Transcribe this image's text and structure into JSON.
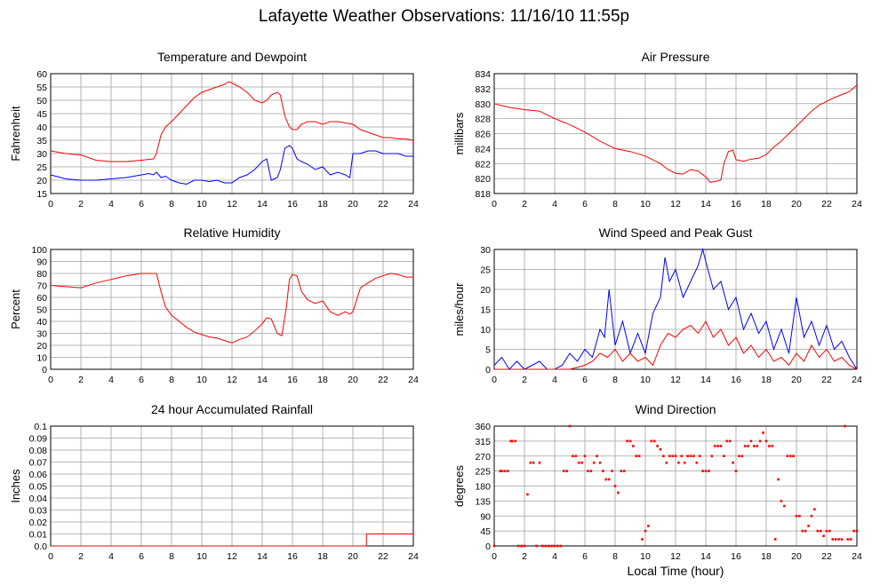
{
  "page": {
    "title": "Lafayette Weather Observations: 11/16/10 11:55p",
    "xlabel_shared": "Local Time (hour)"
  },
  "colors": {
    "red": "#ff0000",
    "blue": "#0000ff",
    "grid": "#a0a0a0"
  },
  "chart_data": [
    {
      "type": "line",
      "title": "Temperature and Dewpoint",
      "xlabel": "",
      "ylabel": "Fahrenheit",
      "xlim": [
        0,
        24
      ],
      "ylim": [
        15,
        60
      ],
      "xticks": [
        0,
        2,
        4,
        6,
        8,
        10,
        12,
        14,
        16,
        18,
        20,
        22,
        24
      ],
      "yticks": [
        15,
        20,
        25,
        30,
        35,
        40,
        45,
        50,
        55,
        60
      ],
      "grid": true,
      "series": [
        {
          "color": "red",
          "x": [
            0,
            1,
            2,
            3,
            4,
            5,
            6,
            6.8,
            7,
            7.3,
            7.6,
            8,
            8.5,
            9,
            9.5,
            10,
            10.5,
            11,
            11.5,
            11.8,
            12,
            12.5,
            13,
            13.5,
            14,
            14.3,
            14.6,
            15,
            15.2,
            15.5,
            15.8,
            16,
            16.3,
            16.6,
            17,
            17.5,
            18,
            18.5,
            19,
            19.5,
            20,
            20.5,
            21,
            21.5,
            22,
            22.5,
            23,
            23.5,
            24
          ],
          "y": [
            31,
            30,
            29.5,
            27.5,
            27,
            27,
            27.5,
            28,
            30,
            37,
            40,
            42,
            45,
            48,
            51,
            53,
            54,
            55,
            56,
            57,
            56.5,
            55,
            53,
            50,
            49,
            50,
            52,
            53,
            52,
            44,
            40,
            39,
            39,
            41,
            42,
            42,
            41,
            42,
            42,
            41.5,
            41,
            39,
            38,
            37,
            36,
            36,
            35.5,
            35.5,
            35
          ]
        },
        {
          "color": "blue",
          "x": [
            0,
            1,
            2,
            3,
            4,
            5,
            6,
            6.5,
            6.8,
            7,
            7.3,
            7.6,
            8,
            8.5,
            9,
            9.5,
            10,
            10.5,
            11,
            11.5,
            12,
            12.5,
            13,
            13.5,
            14,
            14.3,
            14.6,
            15,
            15.2,
            15.5,
            15.8,
            16,
            16.3,
            16.6,
            17,
            17.5,
            18,
            18.5,
            19,
            19.5,
            19.8,
            20,
            20.5,
            21,
            21.5,
            22,
            22.5,
            23,
            23.5,
            24
          ],
          "y": [
            22,
            20.5,
            20,
            20,
            20.5,
            21,
            22,
            22.5,
            22,
            23,
            21,
            21.5,
            20,
            19,
            18.5,
            20,
            20,
            19.5,
            20,
            19,
            19,
            21,
            22,
            24,
            27,
            28,
            20,
            21,
            24,
            32,
            33,
            32,
            28,
            27,
            26,
            24,
            25,
            22,
            23,
            22,
            21,
            30,
            30,
            31,
            31,
            30,
            30,
            30,
            29,
            29
          ]
        }
      ]
    },
    {
      "type": "line",
      "title": "Air Pressure",
      "xlabel": "",
      "ylabel": "millibars",
      "xlim": [
        0,
        24
      ],
      "ylim": [
        818,
        834
      ],
      "xticks": [
        0,
        2,
        4,
        6,
        8,
        10,
        12,
        14,
        16,
        18,
        20,
        22,
        24
      ],
      "yticks": [
        818,
        820,
        822,
        824,
        826,
        828,
        830,
        832,
        834
      ],
      "grid": true,
      "series": [
        {
          "color": "red",
          "x": [
            0,
            1,
            2,
            3,
            4,
            5,
            6,
            7,
            8,
            9,
            10,
            11,
            11.5,
            12,
            12.5,
            13,
            13.5,
            14,
            14.3,
            14.6,
            15,
            15.2,
            15.5,
            15.8,
            16,
            16.5,
            17,
            17.5,
            18,
            18.5,
            19,
            19.5,
            20,
            20.5,
            21,
            21.5,
            22,
            22.5,
            23,
            23.5,
            24
          ],
          "y": [
            830,
            829.5,
            829.2,
            829,
            828,
            827.2,
            826.2,
            825,
            824,
            823.6,
            823,
            822,
            821.2,
            820.7,
            820.6,
            821.2,
            821,
            820.2,
            819.5,
            819.6,
            819.8,
            822,
            823.6,
            823.8,
            822.5,
            822.3,
            822.6,
            822.7,
            823.2,
            824.2,
            825,
            826,
            827,
            828,
            829,
            829.8,
            830.3,
            830.8,
            831.2,
            831.6,
            832.5
          ]
        }
      ]
    },
    {
      "type": "line",
      "title": "Relative Humidity",
      "xlabel": "",
      "ylabel": "Percent",
      "xlim": [
        0,
        24
      ],
      "ylim": [
        0,
        100
      ],
      "xticks": [
        0,
        2,
        4,
        6,
        8,
        10,
        12,
        14,
        16,
        18,
        20,
        22,
        24
      ],
      "yticks": [
        0,
        10,
        20,
        30,
        40,
        50,
        60,
        70,
        80,
        90,
        100
      ],
      "grid": true,
      "series": [
        {
          "color": "red",
          "x": [
            0,
            1,
            2,
            3,
            4,
            5,
            6,
            7,
            7.3,
            7.6,
            8,
            8.5,
            9,
            9.5,
            10,
            10.5,
            11,
            11.5,
            12,
            12.5,
            13,
            13.5,
            14,
            14.3,
            14.6,
            15,
            15.3,
            15.6,
            15.8,
            16,
            16.3,
            16.6,
            17,
            17.5,
            18,
            18.5,
            19,
            19.5,
            19.8,
            20,
            20.5,
            21,
            21.5,
            22,
            22.5,
            23,
            23.5,
            24
          ],
          "y": [
            70,
            69,
            68,
            72,
            75,
            78,
            80,
            80,
            65,
            52,
            45,
            40,
            35,
            31,
            29,
            27,
            26,
            24,
            22,
            25,
            27,
            32,
            38,
            43,
            42,
            30,
            28,
            52,
            75,
            79,
            78,
            65,
            58,
            55,
            57,
            48,
            45,
            48,
            46,
            48,
            68,
            72,
            76,
            78,
            80,
            79,
            77,
            77
          ]
        }
      ]
    },
    {
      "type": "line",
      "title": "Wind Speed and Peak Gust",
      "xlabel": "",
      "ylabel": "miles/hour",
      "xlim": [
        0,
        24
      ],
      "ylim": [
        0,
        30
      ],
      "xticks": [
        0,
        2,
        4,
        6,
        8,
        10,
        12,
        14,
        16,
        18,
        20,
        22,
        24
      ],
      "yticks": [
        0,
        5,
        10,
        15,
        20,
        25,
        30
      ],
      "grid": true,
      "series": [
        {
          "color": "blue",
          "x": [
            0,
            0.5,
            1,
            1.5,
            2,
            2.5,
            3,
            3.5,
            4,
            4.5,
            5,
            5.5,
            6,
            6.5,
            7,
            7.3,
            7.6,
            8,
            8.5,
            9,
            9.5,
            10,
            10.5,
            11,
            11.3,
            11.6,
            12,
            12.5,
            13,
            13.5,
            13.8,
            14,
            14.5,
            15,
            15.5,
            16,
            16.5,
            17,
            17.5,
            18,
            18.5,
            19,
            19.5,
            20,
            20.5,
            21,
            21.5,
            22,
            22.5,
            23,
            23.5,
            24
          ],
          "y": [
            1,
            3,
            0,
            2,
            0,
            1,
            2,
            0,
            0,
            1,
            4,
            2,
            5,
            3,
            10,
            8,
            20,
            6,
            12,
            4,
            9,
            4,
            14,
            18,
            28,
            22,
            25,
            18,
            22,
            26,
            30,
            27,
            20,
            22,
            15,
            18,
            10,
            14,
            9,
            12,
            5,
            10,
            4,
            18,
            8,
            12,
            6,
            11,
            5,
            7,
            3,
            0
          ]
        },
        {
          "color": "red",
          "x": [
            0,
            1,
            2,
            3,
            4,
            5,
            6,
            6.5,
            7,
            7.5,
            8,
            8.5,
            9,
            9.5,
            10,
            10.5,
            11,
            11.5,
            12,
            12.5,
            13,
            13.5,
            14,
            14.5,
            15,
            15.5,
            16,
            16.5,
            17,
            17.5,
            18,
            18.5,
            19,
            19.5,
            20,
            20.5,
            21,
            21.5,
            22,
            22.5,
            23,
            23.5,
            24
          ],
          "y": [
            0,
            0,
            0,
            0,
            0,
            0,
            1,
            2,
            4,
            3,
            5,
            2,
            4,
            2,
            3,
            1,
            6,
            9,
            8,
            10,
            11,
            9,
            12,
            8,
            10,
            6,
            8,
            4,
            6,
            3,
            5,
            2,
            3,
            1,
            4,
            2,
            6,
            3,
            5,
            2,
            3,
            1,
            0
          ]
        }
      ]
    },
    {
      "type": "line",
      "title": "24 hour Accumulated Rainfall",
      "xlabel": "",
      "ylabel": "Inches",
      "xlim": [
        0,
        24
      ],
      "ylim": [
        0,
        0.1
      ],
      "xticks": [
        0,
        2,
        4,
        6,
        8,
        10,
        12,
        14,
        16,
        18,
        20,
        22,
        24
      ],
      "yticks": [
        0.0,
        0.01,
        0.02,
        0.03,
        0.04,
        0.05,
        0.06,
        0.07,
        0.08,
        0.09,
        0.1
      ],
      "ytick_labels": [
        "0.0",
        "0.01",
        "0.02",
        "0.03",
        "0.04",
        "0.05",
        "0.06",
        "0.07",
        "0.08",
        "0.09",
        "0.1"
      ],
      "grid": true,
      "series": [
        {
          "color": "red",
          "step": true,
          "x": [
            0,
            20.9,
            20.9,
            24
          ],
          "y": [
            0,
            0,
            0.01,
            0.01
          ]
        }
      ]
    },
    {
      "type": "scatter",
      "title": "Wind Direction",
      "xlabel": "Local Time (hour)",
      "ylabel": "degrees",
      "xlim": [
        0,
        24
      ],
      "ylim": [
        0,
        360
      ],
      "xticks": [
        0,
        2,
        4,
        6,
        8,
        10,
        12,
        14,
        16,
        18,
        20,
        22,
        24
      ],
      "yticks": [
        0,
        45,
        90,
        135,
        180,
        225,
        270,
        315,
        360
      ],
      "grid": true,
      "series": [
        {
          "color": "red",
          "x": [
            0,
            0.4,
            0.5,
            0.7,
            0.9,
            1.1,
            1.2,
            1.4,
            1.6,
            1.8,
            2.0,
            2.2,
            2.4,
            2.6,
            2.8,
            3.0,
            3.2,
            3.4,
            3.6,
            3.8,
            4.0,
            4.2,
            4.4,
            4.6,
            4.8,
            5.0,
            5.2,
            5.4,
            5.6,
            5.8,
            6.0,
            6.2,
            6.4,
            6.6,
            6.8,
            7.0,
            7.2,
            7.4,
            7.6,
            7.8,
            8.0,
            8.2,
            8.4,
            8.6,
            8.8,
            9.0,
            9.2,
            9.4,
            9.6,
            9.8,
            10.0,
            10.2,
            10.4,
            10.6,
            10.8,
            11.0,
            11.2,
            11.4,
            11.6,
            11.8,
            12.0,
            12.2,
            12.4,
            12.6,
            12.8,
            13.0,
            13.2,
            13.4,
            13.6,
            13.8,
            14.0,
            14.2,
            14.4,
            14.6,
            14.8,
            15.0,
            15.2,
            15.4,
            15.6,
            15.8,
            16.0,
            16.2,
            16.4,
            16.6,
            16.8,
            17.0,
            17.2,
            17.4,
            17.6,
            17.8,
            18.0,
            18.2,
            18.4,
            18.6,
            18.8,
            19.0,
            19.2,
            19.4,
            19.6,
            19.8,
            20.0,
            20.2,
            20.4,
            20.6,
            20.8,
            21.0,
            21.2,
            21.4,
            21.6,
            21.8,
            22.0,
            22.2,
            22.4,
            22.6,
            22.8,
            23.0,
            23.2,
            23.4,
            23.6,
            23.8,
            24.0
          ],
          "y": [
            0,
            225,
            225,
            225,
            225,
            315,
            315,
            315,
            0,
            0,
            0,
            155,
            250,
            250,
            0,
            250,
            0,
            0,
            0,
            0,
            0,
            0,
            0,
            225,
            225,
            360,
            270,
            270,
            250,
            250,
            270,
            225,
            225,
            250,
            270,
            250,
            225,
            200,
            200,
            225,
            180,
            160,
            225,
            225,
            315,
            315,
            300,
            270,
            270,
            20,
            45,
            60,
            315,
            315,
            300,
            290,
            270,
            250,
            270,
            270,
            270,
            250,
            270,
            250,
            270,
            270,
            270,
            250,
            270,
            225,
            225,
            225,
            270,
            300,
            300,
            300,
            270,
            315,
            315,
            250,
            225,
            270,
            270,
            300,
            300,
            315,
            300,
            300,
            315,
            340,
            315,
            300,
            300,
            20,
            200,
            135,
            120,
            270,
            270,
            270,
            90,
            90,
            45,
            45,
            60,
            90,
            110,
            45,
            45,
            30,
            45,
            45,
            20,
            20,
            20,
            20,
            360,
            20,
            20,
            45,
            45
          ]
        }
      ]
    }
  ]
}
